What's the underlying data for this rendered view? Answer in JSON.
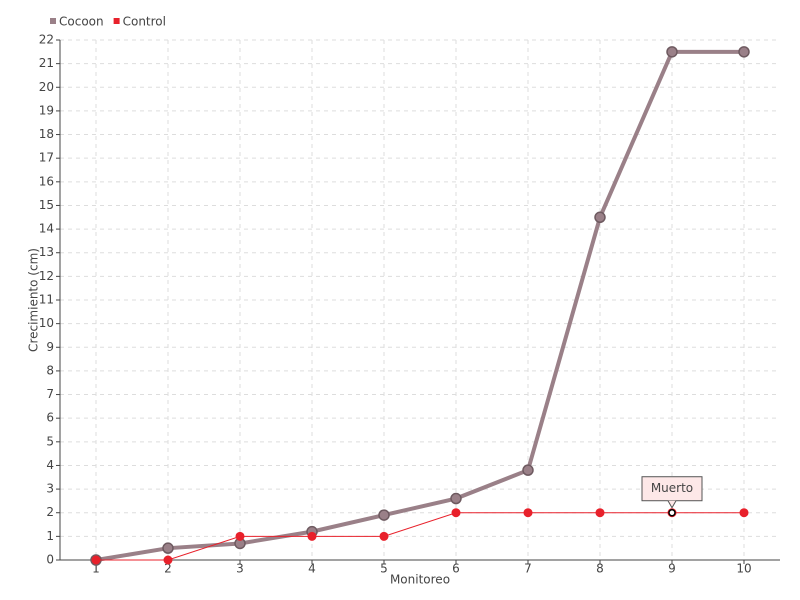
{
  "chart_data": {
    "type": "line",
    "x_label": "Monitoreo",
    "y_label": "Crecimiento (cm)",
    "categories": [
      "1",
      "2",
      "3",
      "4",
      "5",
      "6",
      "7",
      "8",
      "9",
      "10"
    ],
    "series": [
      {
        "name": "Cocoon",
        "color": "#9a8088",
        "values": [
          0,
          0.5,
          0.7,
          1.2,
          1.9,
          2.6,
          3.8,
          14.5,
          21.5,
          21.5
        ]
      },
      {
        "name": "Control",
        "color": "#e8212b",
        "values": [
          0,
          0,
          1,
          1,
          1,
          2,
          2,
          2,
          2,
          2
        ]
      }
    ],
    "ylim": [
      0,
      22
    ],
    "yticks": [
      0,
      1,
      2,
      3,
      4,
      5,
      6,
      7,
      8,
      9,
      10,
      11,
      12,
      13,
      14,
      15,
      16,
      17,
      18,
      19,
      20,
      21,
      22
    ],
    "grid": true,
    "legend": "top-left",
    "annotations": [
      {
        "text": "Muerto",
        "x": "9",
        "y": 2
      }
    ]
  }
}
